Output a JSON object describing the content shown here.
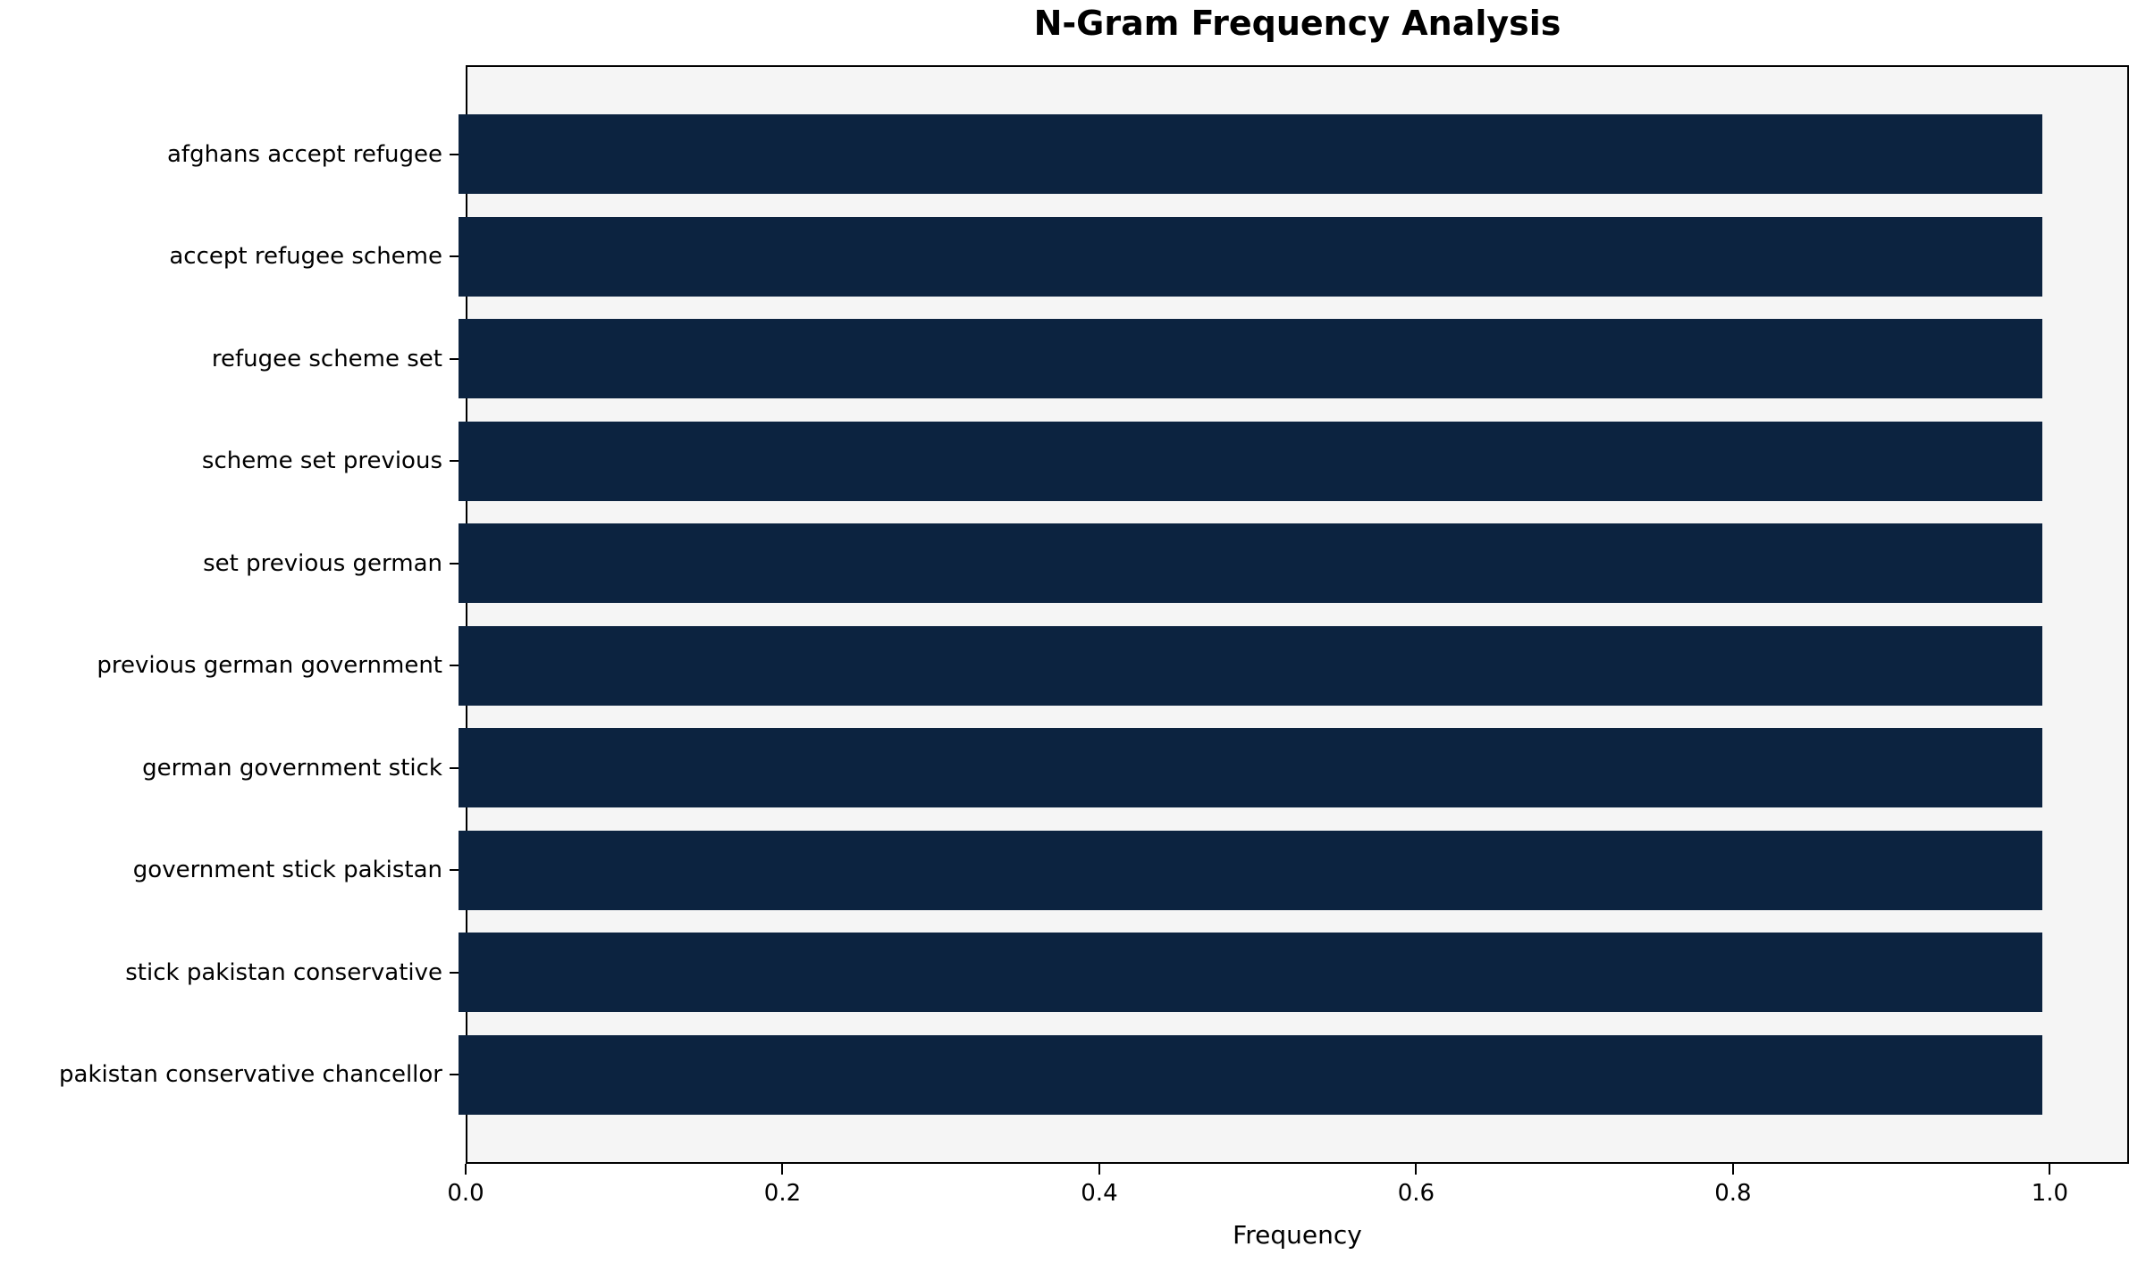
{
  "figure": {
    "colors": {
      "bar": "#0c2340",
      "plot_background": "#f5f5f5",
      "figure_background": "#ffffff",
      "axis": "#000000",
      "text": "#000000"
    }
  },
  "chart_data": {
    "type": "bar",
    "orientation": "horizontal",
    "title": "N-Gram Frequency Analysis",
    "xlabel": "Frequency",
    "ylabel": "",
    "categories": [
      "afghans accept refugee",
      "accept refugee scheme",
      "refugee scheme set",
      "scheme set previous",
      "set previous german",
      "previous german government",
      "german government stick",
      "government stick pakistan",
      "stick pakistan conservative",
      "pakistan conservative chancellor"
    ],
    "values": [
      1.0,
      1.0,
      1.0,
      1.0,
      1.0,
      1.0,
      1.0,
      1.0,
      1.0,
      1.0
    ],
    "xlim": [
      0,
      1.05
    ],
    "xticks": [
      {
        "value": 0.0,
        "label": "0.0"
      },
      {
        "value": 0.2,
        "label": "0.2"
      },
      {
        "value": 0.4,
        "label": "0.4"
      },
      {
        "value": 0.6,
        "label": "0.6"
      },
      {
        "value": 0.8,
        "label": "0.8"
      },
      {
        "value": 1.0,
        "label": "1.0"
      }
    ],
    "grid": false,
    "legend": null
  }
}
